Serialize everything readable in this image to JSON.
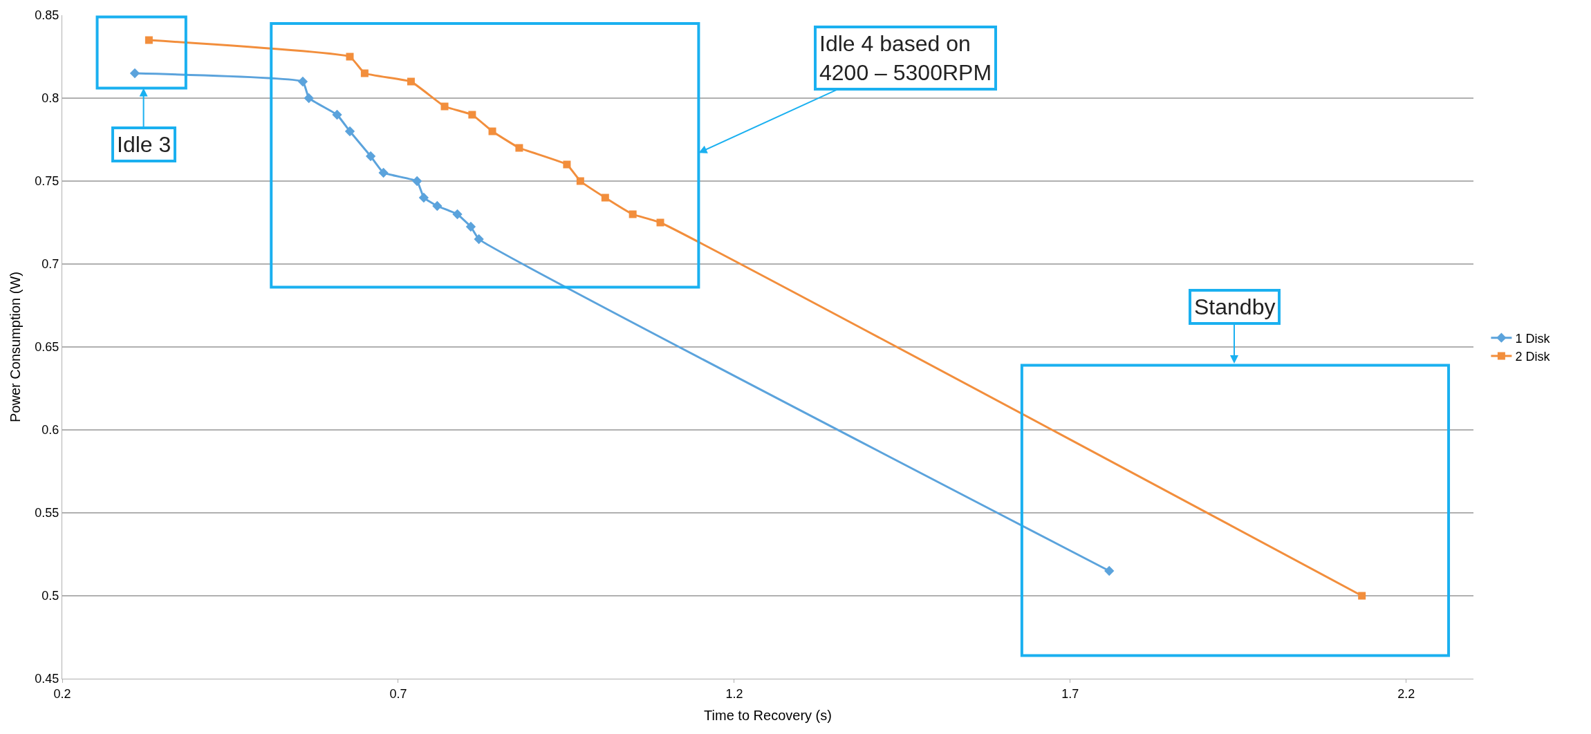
{
  "chart_data": {
    "type": "line",
    "xlabel": "Time to Recovery (s)",
    "ylabel": "Power Consumption (W)",
    "xlim": [
      0.2,
      2.3
    ],
    "xticks": [
      0.2,
      0.7,
      1.2,
      1.7,
      2.2
    ],
    "ylim": [
      0.45,
      0.85
    ],
    "yticks": [
      0.45,
      0.5,
      0.55,
      0.6,
      0.65,
      0.7,
      0.75,
      0.8,
      0.85
    ],
    "grid": "y",
    "legend": "right",
    "series": [
      {
        "name": "1 Disk",
        "color": "#5ba3dc",
        "marker": "diamond",
        "x": [
          0.308,
          0.558,
          0.567,
          0.609,
          0.628,
          0.659,
          0.678,
          0.728,
          0.738,
          0.758,
          0.788,
          0.808,
          0.82,
          1.758
        ],
        "values": [
          0.815,
          0.81,
          0.8,
          0.79,
          0.78,
          0.765,
          0.755,
          0.75,
          0.74,
          0.735,
          0.73,
          0.7225,
          0.715,
          0.515
        ]
      },
      {
        "name": "2 Disk",
        "color": "#f28e3c",
        "marker": "square",
        "x": [
          0.329,
          0.628,
          0.65,
          0.719,
          0.769,
          0.81,
          0.84,
          0.88,
          0.951,
          0.971,
          1.008,
          1.049,
          1.09,
          2.134
        ],
        "values": [
          0.835,
          0.825,
          0.815,
          0.81,
          0.795,
          0.79,
          0.78,
          0.77,
          0.76,
          0.75,
          0.74,
          0.73,
          0.725,
          0.5
        ]
      }
    ],
    "annotations": [
      "Idle 3",
      "Idle 4 based on\n4200 – 5300RPM",
      "Standby"
    ]
  }
}
